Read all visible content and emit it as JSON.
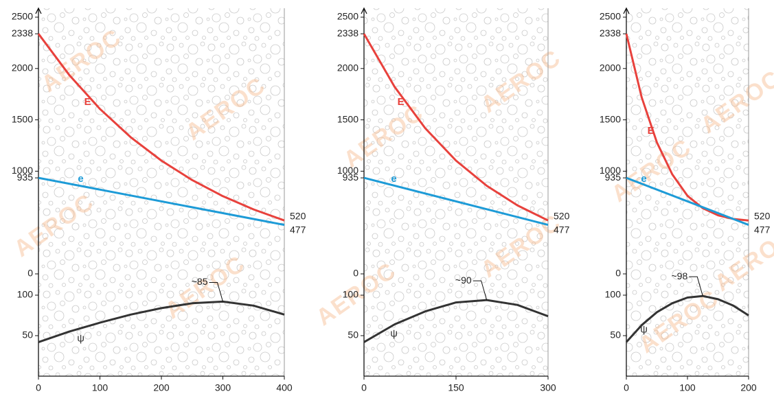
{
  "watermark": "AEROC",
  "chart_data": [
    {
      "type": "line",
      "xlim": [
        0,
        400
      ],
      "xticks": [
        0,
        100,
        200,
        300,
        400
      ],
      "ylim": [
        0,
        2500
      ],
      "yticks": [
        0,
        935,
        1000,
        1500,
        2000,
        2338,
        2500
      ],
      "y2lim": [
        0,
        100
      ],
      "y2ticks": [
        50,
        100
      ],
      "series": [
        {
          "name": "E",
          "color": "#e8413c",
          "x": [
            0,
            50,
            100,
            150,
            200,
            250,
            300,
            350,
            400
          ],
          "values": [
            2338,
            1937,
            1606,
            1331,
            1103,
            914,
            757,
            628,
            520
          ]
        },
        {
          "name": "e",
          "color": "#1d9bd7",
          "x": [
            0,
            400
          ],
          "values": [
            935,
            477
          ]
        },
        {
          "name": "ψ",
          "color": "#333333",
          "axis": "y2",
          "x": [
            0,
            50,
            100,
            150,
            200,
            250,
            300,
            350,
            400
          ],
          "values": [
            42,
            55,
            66,
            76,
            84,
            90,
            92,
            87,
            76
          ]
        }
      ],
      "annotations": [
        {
          "text": "~85"
        }
      ]
    },
    {
      "type": "line",
      "xlim": [
        0,
        300
      ],
      "xticks": [
        0,
        150,
        300
      ],
      "ylim": [
        0,
        2500
      ],
      "yticks": [
        0,
        935,
        1000,
        1500,
        2000,
        2338,
        2500
      ],
      "y2lim": [
        0,
        100
      ],
      "y2ticks": [
        50,
        100
      ],
      "series": [
        {
          "name": "E",
          "color": "#e8413c",
          "x": [
            0,
            50,
            100,
            150,
            200,
            250,
            300
          ],
          "values": [
            2338,
            1820,
            1417,
            1103,
            858,
            668,
            520
          ]
        },
        {
          "name": "e",
          "color": "#1d9bd7",
          "x": [
            0,
            300
          ],
          "values": [
            935,
            477
          ]
        },
        {
          "name": "ψ",
          "color": "#333333",
          "axis": "y2",
          "x": [
            0,
            50,
            100,
            150,
            200,
            250,
            300
          ],
          "values": [
            42,
            64,
            80,
            91,
            94,
            88,
            74
          ]
        }
      ],
      "annotations": [
        {
          "text": "~90"
        }
      ]
    },
    {
      "type": "line",
      "xlim": [
        0,
        200
      ],
      "xticks": [
        0,
        100,
        200
      ],
      "ylim": [
        0,
        2500
      ],
      "yticks": [
        0,
        935,
        1000,
        1500,
        2000,
        2338,
        2500
      ],
      "y2lim": [
        0,
        100
      ],
      "y2ticks": [
        50,
        100
      ],
      "series": [
        {
          "name": "E",
          "color": "#e8413c",
          "x": [
            0,
            25,
            50,
            75,
            100,
            125,
            150,
            175,
            200
          ],
          "values": [
            2338,
            1720,
            1280,
            970,
            760,
            640,
            570,
            535,
            520
          ]
        },
        {
          "name": "e",
          "color": "#1d9bd7",
          "x": [
            0,
            200
          ],
          "values": [
            935,
            477
          ]
        },
        {
          "name": "ψ",
          "color": "#333333",
          "axis": "y2",
          "x": [
            0,
            25,
            50,
            75,
            100,
            125,
            150,
            175,
            200
          ],
          "values": [
            42,
            63,
            79,
            90,
            97,
            99,
            95,
            87,
            75
          ]
        }
      ],
      "annotations": [
        {
          "text": "~98"
        }
      ]
    }
  ]
}
